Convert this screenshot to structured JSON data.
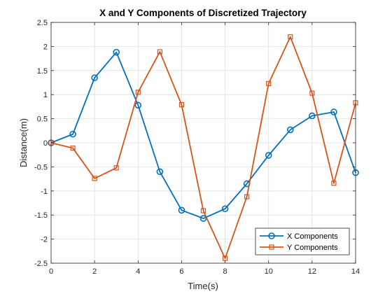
{
  "chart_data": {
    "type": "line",
    "title": "X and Y Components of Discretized Trajectory",
    "xlabel": "Time(s)",
    "ylabel": "Distance(m)",
    "xlim": [
      0,
      14
    ],
    "ylim": [
      -2.5,
      2.5
    ],
    "xticks": [
      "0",
      "2",
      "4",
      "6",
      "8",
      "10",
      "12",
      "14"
    ],
    "yticks": [
      "-2.5",
      "-2",
      "-1.5",
      "-1",
      "-0.5",
      "0",
      "0.5",
      "1",
      "1.5",
      "2",
      "2.5"
    ],
    "grid": true,
    "legend_position": "bottom-right",
    "x": [
      0,
      1,
      2,
      3,
      4,
      5,
      6,
      7,
      8,
      9,
      10,
      11,
      12,
      13,
      14
    ],
    "series": [
      {
        "name": "X Components",
        "color": "#0072BD",
        "marker": "circle",
        "values": [
          0,
          0.18,
          1.35,
          1.88,
          0.78,
          -0.6,
          -1.4,
          -1.57,
          -1.37,
          -0.85,
          -0.26,
          0.27,
          0.56,
          0.64,
          -0.62
        ]
      },
      {
        "name": "Y Components",
        "color": "#D95319",
        "marker": "square",
        "values": [
          0,
          -0.11,
          -0.74,
          -0.52,
          1.05,
          1.89,
          0.79,
          -1.41,
          -2.4,
          -1.12,
          1.23,
          2.2,
          1.03,
          -0.84,
          0.83
        ]
      }
    ]
  }
}
